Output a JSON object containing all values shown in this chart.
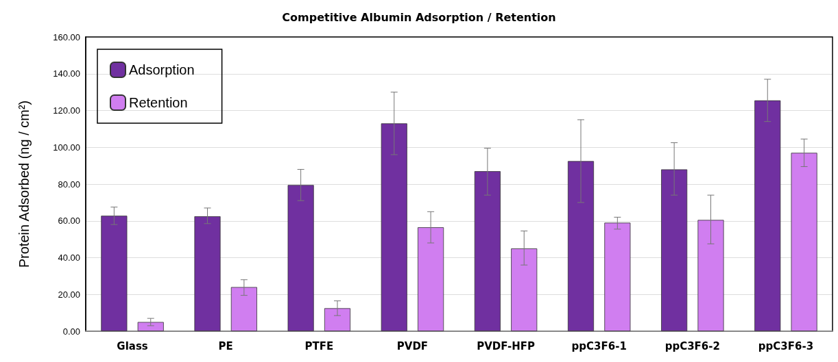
{
  "chart_data": {
    "type": "bar",
    "title": "Competitive Albumin Adsorption / Retention",
    "ylabel": "Protein Adsorbed (ng / cm²)",
    "categories": [
      "Glass",
      "PE",
      "PTFE",
      "PVDF",
      "PVDF-HFP",
      "ppC3F6-1",
      "ppC3F6-2",
      "ppC3F6-3"
    ],
    "series": [
      {
        "name": "Adsorption",
        "color": "#7030a0",
        "values": [
          62.8,
          62.5,
          79.5,
          113,
          87,
          92.5,
          88,
          125.5
        ],
        "errors": [
          [
            58,
            67.5
          ],
          [
            58.5,
            67
          ],
          [
            71,
            88
          ],
          [
            96,
            130
          ],
          [
            74,
            99.5
          ],
          [
            70,
            115
          ],
          [
            74,
            102.5
          ],
          [
            114,
            137
          ]
        ]
      },
      {
        "name": "Retention",
        "color": "#d07ef0",
        "values": [
          5,
          24,
          12.5,
          56.5,
          45,
          59,
          60.5,
          97
        ],
        "errors": [
          [
            3,
            7
          ],
          [
            19.5,
            28
          ],
          [
            8.5,
            16.5
          ],
          [
            48,
            65
          ],
          [
            36,
            54.5
          ],
          [
            55.5,
            62
          ],
          [
            47.5,
            74
          ],
          [
            89.5,
            104.5
          ]
        ]
      }
    ],
    "ylim": [
      0,
      160
    ],
    "yticks": [
      {
        "value": 0,
        "label": "0.00"
      },
      {
        "value": 20,
        "label": "20.00"
      },
      {
        "value": 40,
        "label": "40.00"
      },
      {
        "value": 60,
        "label": "60.00"
      },
      {
        "value": 80,
        "label": "80.00"
      },
      {
        "value": 100,
        "label": "100.00"
      },
      {
        "value": 120,
        "label": "120.00"
      },
      {
        "value": 140,
        "label": "140.00"
      },
      {
        "value": 160,
        "label": "160.00"
      }
    ],
    "grid": "y",
    "legend": "top left"
  }
}
